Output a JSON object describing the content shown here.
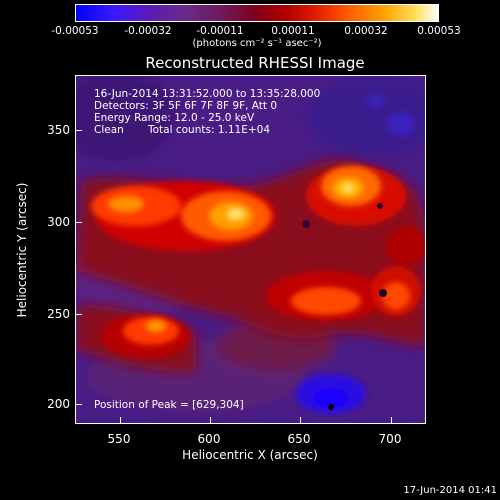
{
  "colorbar": {
    "ticks": [
      "-0.00053",
      "-0.00032",
      "-0.00011",
      "0.00011",
      "0.00032",
      "0.00053"
    ],
    "units": "(photons cm⁻² s⁻¹ asec⁻²)"
  },
  "chart_data": {
    "type": "heatmap",
    "title": "Reconstructed RHESSI Image",
    "xlabel": "Heliocentric X (arcsec)",
    "ylabel": "Heliocentric Y (arcsec)",
    "xlim": [
      525,
      720
    ],
    "ylim": [
      192,
      385
    ],
    "x_ticks": [
      "550",
      "600",
      "650",
      "700"
    ],
    "y_ticks": [
      "200",
      "250",
      "300",
      "350"
    ],
    "color_range": [
      -0.00053,
      0.00053
    ],
    "peak_position": [
      629,
      304
    ]
  },
  "info": {
    "time": "16-Jun-2014 13:31:52.000 to 13:35:28.000",
    "detectors": "Detectors: 3F 5F 6F 7F 8F 9F, Att 0",
    "energy": "Energy Range: 12.0 - 25.0 keV",
    "algorithm": "Clean",
    "total_counts": "Total counts: 1.11E+04",
    "peak": "Position of Peak = [629,304]"
  },
  "footer": "17-Jun-2014 01:41"
}
